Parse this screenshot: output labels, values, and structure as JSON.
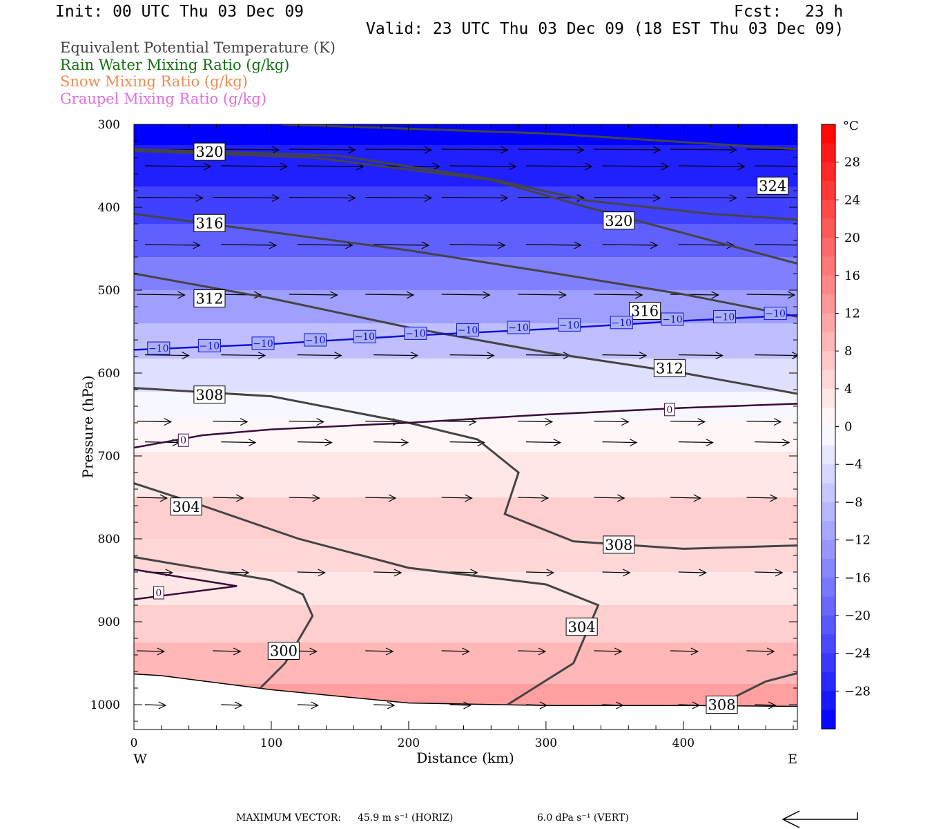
{
  "header": {
    "init": "Init: 00 UTC Thu 03 Dec 09",
    "fcst_label": "Fcst:",
    "fcst_value": "23 h",
    "valid": "Valid: 23 UTC Thu 03 Dec 09 (18 EST Thu 03 Dec 09)"
  },
  "legend": [
    {
      "label": "Equivalent Potential Temperature (K)",
      "color": "#444444"
    },
    {
      "label": "Rain Water Mixing Ratio (g/kg)",
      "color": "#107010"
    },
    {
      "label": "Snow Mixing Ratio (g/kg)",
      "color": "#f08a50"
    },
    {
      "label": "Graupel Mixing Ratio (g/kg)",
      "color": "#e070e0"
    }
  ],
  "footer": {
    "max_label": "MAXIMUM VECTOR:",
    "horiz": "45.9 m s⁻¹ (HORIZ)",
    "vert": "6.0 dPa s⁻¹ (VERT)"
  },
  "chart_data": {
    "type": "contour",
    "xlabel": "Distance (km)",
    "ylabel": "Pressure (hPa)",
    "xlim": [
      0,
      483
    ],
    "ylim": [
      1030,
      300
    ],
    "x_ticks": [
      0,
      100,
      200,
      300,
      400
    ],
    "y_ticks": [
      300,
      400,
      500,
      600,
      700,
      800,
      900,
      1000
    ],
    "x_end_labels": {
      "left": "W",
      "right": "E"
    },
    "colorbar": {
      "unit": "°C",
      "min": -32,
      "max": 32,
      "tick_values": [
        28,
        24,
        20,
        16,
        12,
        8,
        4,
        0,
        -4,
        -8,
        -12,
        -16,
        -20,
        -24,
        -28
      ],
      "tick_labels": [
        "28",
        "24",
        "20",
        "16",
        "12",
        "8",
        "4",
        "0",
        "−4",
        "−8",
        "−12",
        "−16",
        "−20",
        "−24",
        "−28"
      ]
    },
    "temperature_bands": [
      {
        "p": 300,
        "t": -32
      },
      {
        "p": 350,
        "t": -28
      },
      {
        "p": 400,
        "t": -24
      },
      {
        "p": 440,
        "t": -20
      },
      {
        "p": 480,
        "t": -16
      },
      {
        "p": 520,
        "t": -12
      },
      {
        "p": 560,
        "t": -8
      },
      {
        "p": 605,
        "t": -4
      },
      {
        "p": 640,
        "t": -1
      },
      {
        "p": 670,
        "t": 1
      },
      {
        "p": 720,
        "t": 3
      },
      {
        "p": 780,
        "t": 6
      },
      {
        "p": 820,
        "t": 5
      },
      {
        "p": 860,
        "t": 3
      },
      {
        "p": 900,
        "t": 6
      },
      {
        "p": 950,
        "t": 9
      },
      {
        "p": 1000,
        "t": 12
      }
    ],
    "theta_e_contours": [
      {
        "level": 324,
        "points": [
          [
            108,
            300
          ],
          [
            300,
            311
          ],
          [
            483,
            330
          ]
        ]
      },
      {
        "level": 324,
        "points": [
          [
            0,
            330
          ],
          [
            150,
            338
          ],
          [
            260,
            366
          ],
          [
            330,
            392
          ],
          [
            420,
            408
          ],
          [
            483,
            415
          ]
        ]
      },
      {
        "level": 320,
        "points": [
          [
            0,
            332
          ],
          [
            130,
            340
          ],
          [
            260,
            367
          ],
          [
            330,
            400
          ],
          [
            420,
            440
          ],
          [
            483,
            468
          ]
        ]
      },
      {
        "level": 316,
        "points": [
          [
            0,
            408
          ],
          [
            100,
            430
          ],
          [
            200,
            452
          ],
          [
            300,
            478
          ],
          [
            400,
            505
          ],
          [
            483,
            532
          ]
        ]
      },
      {
        "level": 312,
        "points": [
          [
            0,
            480
          ],
          [
            100,
            510
          ],
          [
            200,
            545
          ],
          [
            300,
            575
          ],
          [
            400,
            600
          ],
          [
            483,
            625
          ]
        ]
      },
      {
        "level": 308,
        "points": [
          [
            0,
            618
          ],
          [
            100,
            628
          ],
          [
            200,
            660
          ],
          [
            250,
            680
          ],
          [
            280,
            720
          ],
          [
            270,
            770
          ],
          [
            320,
            803
          ],
          [
            400,
            812
          ],
          [
            483,
            808
          ]
        ]
      },
      {
        "level": 304,
        "points": [
          [
            0,
            733
          ],
          [
            50,
            760
          ],
          [
            120,
            800
          ],
          [
            200,
            835
          ],
          [
            300,
            855
          ],
          [
            338,
            880
          ],
          [
            320,
            950
          ],
          [
            272,
            1000
          ]
        ]
      },
      {
        "level": 300,
        "points": [
          [
            0,
            822
          ],
          [
            100,
            850
          ],
          [
            123,
            867
          ],
          [
            130,
            893
          ],
          [
            110,
            950
          ],
          [
            92,
            980
          ]
        ]
      },
      {
        "level": 308,
        "points": [
          [
            420,
            1005
          ],
          [
            460,
            972
          ],
          [
            483,
            962
          ]
        ]
      }
    ],
    "theta_e_labels": [
      {
        "text": "320",
        "x": 55,
        "p": 333
      },
      {
        "text": "324",
        "x": 465,
        "p": 374
      },
      {
        "text": "316",
        "x": 55,
        "p": 419
      },
      {
        "text": "320",
        "x": 353,
        "p": 416
      },
      {
        "text": "312",
        "x": 55,
        "p": 510
      },
      {
        "text": "316",
        "x": 372,
        "p": 525
      },
      {
        "text": "312",
        "x": 390,
        "p": 594
      },
      {
        "text": "308",
        "x": 55,
        "p": 626
      },
      {
        "text": "304",
        "x": 38,
        "p": 761
      },
      {
        "text": "308",
        "x": 353,
        "p": 807
      },
      {
        "text": "304",
        "x": 326,
        "p": 906
      },
      {
        "text": "300",
        "x": 109,
        "p": 935
      },
      {
        "text": "308",
        "x": 428,
        "p": 1000
      }
    ],
    "isotherms": [
      {
        "level": -10,
        "points": [
          [
            0,
            572
          ],
          [
            100,
            565
          ],
          [
            200,
            555
          ],
          [
            300,
            547
          ],
          [
            400,
            537
          ],
          [
            483,
            530
          ]
        ]
      },
      {
        "level": 0,
        "points": [
          [
            0,
            690
          ],
          [
            50,
            675
          ],
          [
            100,
            668
          ],
          [
            200,
            660
          ],
          [
            300,
            650
          ],
          [
            400,
            642
          ],
          [
            483,
            637
          ]
        ]
      },
      {
        "level": 0,
        "points": [
          [
            0,
            837
          ],
          [
            75,
            857
          ],
          [
            0,
            873
          ]
        ]
      }
    ],
    "isotherm_labels": [
      {
        "text": "−10",
        "x": 18,
        "p": 570
      },
      {
        "text": "−10",
        "x": 55,
        "p": 567
      },
      {
        "text": "−10",
        "x": 94,
        "p": 564
      },
      {
        "text": "−10",
        "x": 132,
        "p": 560
      },
      {
        "text": "−10",
        "x": 168,
        "p": 556
      },
      {
        "text": "−10",
        "x": 205,
        "p": 552
      },
      {
        "text": "−10",
        "x": 243,
        "p": 548
      },
      {
        "text": "−10",
        "x": 280,
        "p": 545
      },
      {
        "text": "−10",
        "x": 317,
        "p": 542
      },
      {
        "text": "−10",
        "x": 355,
        "p": 539
      },
      {
        "text": "−10",
        "x": 392,
        "p": 535
      },
      {
        "text": "−10",
        "x": 430,
        "p": 532
      },
      {
        "text": "−10",
        "x": 467,
        "p": 528
      },
      {
        "text": "0",
        "x": 390,
        "p": 644
      },
      {
        "text": "0",
        "x": 36,
        "p": 681
      },
      {
        "text": "0",
        "x": 18,
        "p": 865
      }
    ],
    "wind_vector_rows": [
      {
        "p": 330,
        "len_km": 48
      },
      {
        "p": 350,
        "len_km": 48
      },
      {
        "p": 388,
        "len_km": 48
      },
      {
        "p": 445,
        "len_km": 40
      },
      {
        "p": 505,
        "len_km": 35
      },
      {
        "p": 578,
        "len_km": 32
      },
      {
        "p": 658,
        "len_km": 25
      },
      {
        "p": 683,
        "len_km": 25
      },
      {
        "p": 750,
        "len_km": 22
      },
      {
        "p": 840,
        "len_km": 20
      },
      {
        "p": 935,
        "len_km": 20
      },
      {
        "p": 1000,
        "len_km": 15
      }
    ],
    "terrain": [
      [
        0,
        963
      ],
      [
        20,
        965
      ],
      [
        100,
        982
      ],
      [
        200,
        998
      ],
      [
        300,
        1001
      ],
      [
        400,
        1001
      ],
      [
        483,
        1002
      ]
    ]
  }
}
